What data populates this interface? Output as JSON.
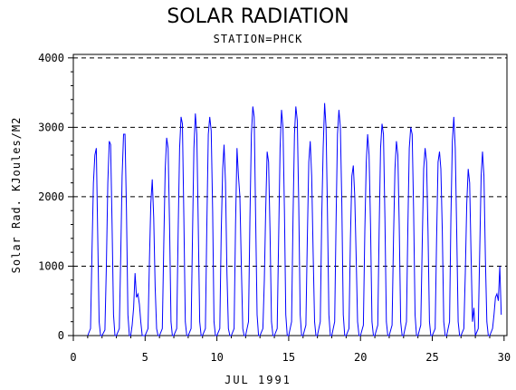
{
  "chart_data": {
    "type": "line",
    "title": "SOLAR RADIATION",
    "subtitle": "STATION=PHCK",
    "xlabel": "JUL 1991",
    "ylabel": "Solar Rad. KJoules/M2",
    "xlim": [
      0,
      30.2
    ],
    "ylim": [
      0,
      4050
    ],
    "x_ticks": [
      0,
      5,
      10,
      15,
      20,
      25,
      30
    ],
    "y_ticks": [
      0,
      1000,
      2000,
      3000,
      4000
    ],
    "grid": "horizontal dashed at y ticks",
    "series": [
      {
        "color": "#0000ff",
        "x": [
          1.0,
          1.2,
          1.3,
          1.4,
          1.5,
          1.6,
          1.7,
          1.8,
          1.9,
          2.0,
          2.2,
          2.3,
          2.4,
          2.5,
          2.6,
          2.7,
          2.8,
          2.9,
          3.0,
          3.2,
          3.3,
          3.4,
          3.5,
          3.6,
          3.7,
          3.8,
          3.9,
          4.0,
          4.1,
          4.2,
          4.3,
          4.4,
          4.5,
          4.6,
          4.7,
          4.8,
          5.0,
          5.2,
          5.3,
          5.4,
          5.5,
          5.6,
          5.7,
          5.8,
          5.9,
          6.0,
          6.2,
          6.3,
          6.4,
          6.5,
          6.6,
          6.7,
          6.8,
          6.9,
          7.0,
          7.2,
          7.3,
          7.4,
          7.5,
          7.6,
          7.7,
          7.8,
          7.9,
          8.0,
          8.2,
          8.3,
          8.4,
          8.5,
          8.6,
          8.7,
          8.8,
          8.9,
          9.0,
          9.2,
          9.3,
          9.4,
          9.5,
          9.6,
          9.7,
          9.8,
          9.9,
          10.0,
          10.2,
          10.3,
          10.4,
          10.5,
          10.6,
          10.7,
          10.8,
          10.9,
          11.0,
          11.2,
          11.3,
          11.4,
          11.5,
          11.6,
          11.7,
          11.8,
          11.9,
          12.0,
          12.2,
          12.3,
          12.4,
          12.5,
          12.6,
          12.7,
          12.8,
          12.9,
          13.0,
          13.2,
          13.3,
          13.4,
          13.5,
          13.6,
          13.7,
          13.8,
          13.9,
          14.0,
          14.2,
          14.3,
          14.4,
          14.5,
          14.6,
          14.7,
          14.8,
          14.9,
          15.0,
          15.2,
          15.3,
          15.4,
          15.5,
          15.6,
          15.7,
          15.8,
          15.9,
          16.0,
          16.2,
          16.3,
          16.4,
          16.5,
          16.6,
          16.7,
          16.8,
          16.9,
          17.0,
          17.2,
          17.3,
          17.4,
          17.5,
          17.6,
          17.7,
          17.8,
          17.9,
          18.0,
          18.2,
          18.3,
          18.4,
          18.5,
          18.6,
          18.7,
          18.8,
          18.9,
          19.0,
          19.2,
          19.3,
          19.4,
          19.5,
          19.6,
          19.7,
          19.8,
          19.9,
          20.0,
          20.2,
          20.3,
          20.4,
          20.5,
          20.6,
          20.7,
          20.8,
          20.9,
          21.0,
          21.2,
          21.3,
          21.4,
          21.5,
          21.6,
          21.7,
          21.8,
          21.9,
          22.0,
          22.2,
          22.3,
          22.4,
          22.5,
          22.6,
          22.7,
          22.8,
          22.9,
          23.0,
          23.2,
          23.3,
          23.4,
          23.5,
          23.6,
          23.7,
          23.8,
          23.9,
          24.0,
          24.2,
          24.3,
          24.4,
          24.5,
          24.6,
          24.7,
          24.8,
          24.9,
          25.0,
          25.2,
          25.3,
          25.4,
          25.5,
          25.6,
          25.7,
          25.8,
          25.9,
          26.0,
          26.2,
          26.3,
          26.4,
          26.5,
          26.6,
          26.7,
          26.8,
          26.9,
          27.0,
          27.2,
          27.3,
          27.4,
          27.5,
          27.6,
          27.7,
          27.8,
          27.9,
          28.0,
          28.2,
          28.3,
          28.4,
          28.5,
          28.6,
          28.7,
          28.8,
          28.9,
          29.0,
          29.2,
          29.3,
          29.4,
          29.5,
          29.6,
          29.7,
          29.8
        ],
        "y": [
          0,
          100,
          1200,
          2200,
          2600,
          2700,
          1400,
          200,
          0,
          0,
          80,
          1000,
          2200,
          2800,
          2750,
          1600,
          300,
          0,
          0,
          100,
          1100,
          2300,
          2900,
          2900,
          1800,
          300,
          0,
          0,
          150,
          400,
          900,
          550,
          600,
          450,
          200,
          0,
          0,
          100,
          1100,
          1900,
          2250,
          1700,
          700,
          100,
          0,
          0,
          100,
          1300,
          2400,
          2850,
          2700,
          1600,
          200,
          0,
          0,
          100,
          1500,
          2700,
          3150,
          3050,
          1700,
          200,
          0,
          0,
          100,
          1400,
          2700,
          3200,
          2900,
          1600,
          200,
          0,
          0,
          100,
          1600,
          2900,
          3150,
          2950,
          1800,
          200,
          0,
          0,
          100,
          1500,
          2400,
          2750,
          2200,
          900,
          100,
          0,
          0,
          100,
          1600,
          2700,
          2300,
          2000,
          1000,
          100,
          0,
          0,
          200,
          1700,
          2900,
          3300,
          3150,
          1700,
          300,
          0,
          0,
          100,
          800,
          1800,
          2650,
          2500,
          1500,
          200,
          0,
          0,
          100,
          1400,
          2700,
          3250,
          3000,
          1800,
          300,
          0,
          0,
          200,
          1700,
          2900,
          3300,
          3100,
          1900,
          300,
          0,
          0,
          150,
          1400,
          2500,
          2800,
          2300,
          1200,
          200,
          0,
          0,
          200,
          1700,
          2700,
          3350,
          3000,
          1800,
          300,
          0,
          0,
          200,
          1700,
          2900,
          3250,
          3000,
          1900,
          300,
          0,
          0,
          100,
          1400,
          2300,
          2450,
          2000,
          1100,
          200,
          0,
          0,
          150,
          1500,
          2500,
          2900,
          2600,
          1600,
          200,
          0,
          0,
          150,
          1500,
          2700,
          3050,
          2900,
          1700,
          200,
          0,
          0,
          150,
          1400,
          2400,
          2800,
          2600,
          1600,
          200,
          0,
          0,
          200,
          1600,
          2700,
          3000,
          2900,
          1800,
          300,
          0,
          0,
          150,
          1300,
          2400,
          2700,
          2500,
          1500,
          200,
          0,
          0,
          100,
          1400,
          2500,
          2650,
          2400,
          1500,
          200,
          0,
          0,
          200,
          1700,
          2800,
          3150,
          2700,
          1500,
          200,
          0,
          0,
          100,
          900,
          1900,
          2400,
          2200,
          1200,
          200,
          400,
          0,
          100,
          1200,
          2300,
          2650,
          2300,
          1100,
          200,
          0,
          0,
          100,
          300,
          550,
          600,
          500,
          1000,
          300
        ]
      }
    ]
  }
}
